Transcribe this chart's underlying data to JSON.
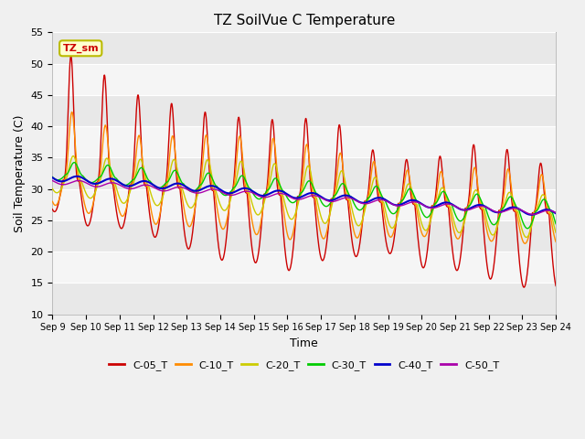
{
  "title": "TZ SoilVue C Temperature",
  "xlabel": "Time",
  "ylabel": "Soil Temperature (C)",
  "ylim": [
    10,
    55
  ],
  "yticks": [
    10,
    15,
    20,
    25,
    30,
    35,
    40,
    45,
    50,
    55
  ],
  "date_labels": [
    "Sep 9",
    "Sep 10",
    "Sep 11",
    "Sep 12",
    "Sep 13",
    "Sep 14",
    "Sep 15",
    "Sep 16",
    "Sep 17",
    "Sep 18",
    "Sep 19",
    "Sep 20",
    "Sep 21",
    "Sep 22",
    "Sep 23",
    "Sep 24"
  ],
  "legend_box_label": "TZ_sm",
  "legend_box_facecolor": "#FFFFD0",
  "legend_box_edgecolor": "#BBBB00",
  "plot_bg_color": "#E8E8E8",
  "series": [
    {
      "label": "C-05_T",
      "color": "#CC0000",
      "lw": 1.0
    },
    {
      "label": "C-10_T",
      "color": "#FF8C00",
      "lw": 1.0
    },
    {
      "label": "C-20_T",
      "color": "#CCCC00",
      "lw": 1.0
    },
    {
      "label": "C-30_T",
      "color": "#00CC00",
      "lw": 1.0
    },
    {
      "label": "C-40_T",
      "color": "#0000CC",
      "lw": 1.5
    },
    {
      "label": "C-50_T",
      "color": "#AA00AA",
      "lw": 1.0
    }
  ]
}
